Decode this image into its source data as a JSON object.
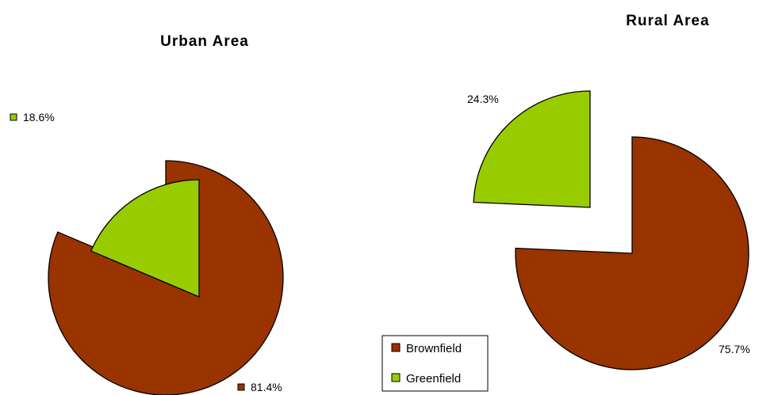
{
  "colors": {
    "brownfield": "#993300",
    "greenfield": "#99cc00",
    "outline": "#000000"
  },
  "legend": {
    "items": [
      {
        "label": "Brownfield",
        "color": "#993300"
      },
      {
        "label": "Greenfield",
        "color": "#99cc00"
      }
    ],
    "placement": "bottom-center"
  },
  "chart_data": [
    {
      "type": "pie",
      "title": "Urban Area",
      "categories": [
        "Brownfield",
        "Greenfield"
      ],
      "values": [
        81.4,
        18.6
      ],
      "labels": [
        "81.4%",
        "18.6%"
      ],
      "exploded": true
    },
    {
      "type": "pie",
      "title": "Rural Area",
      "categories": [
        "Brownfield",
        "Greenfield"
      ],
      "values": [
        75.7,
        24.3
      ],
      "labels": [
        "75.7%",
        "24.3%"
      ],
      "exploded": true
    }
  ]
}
